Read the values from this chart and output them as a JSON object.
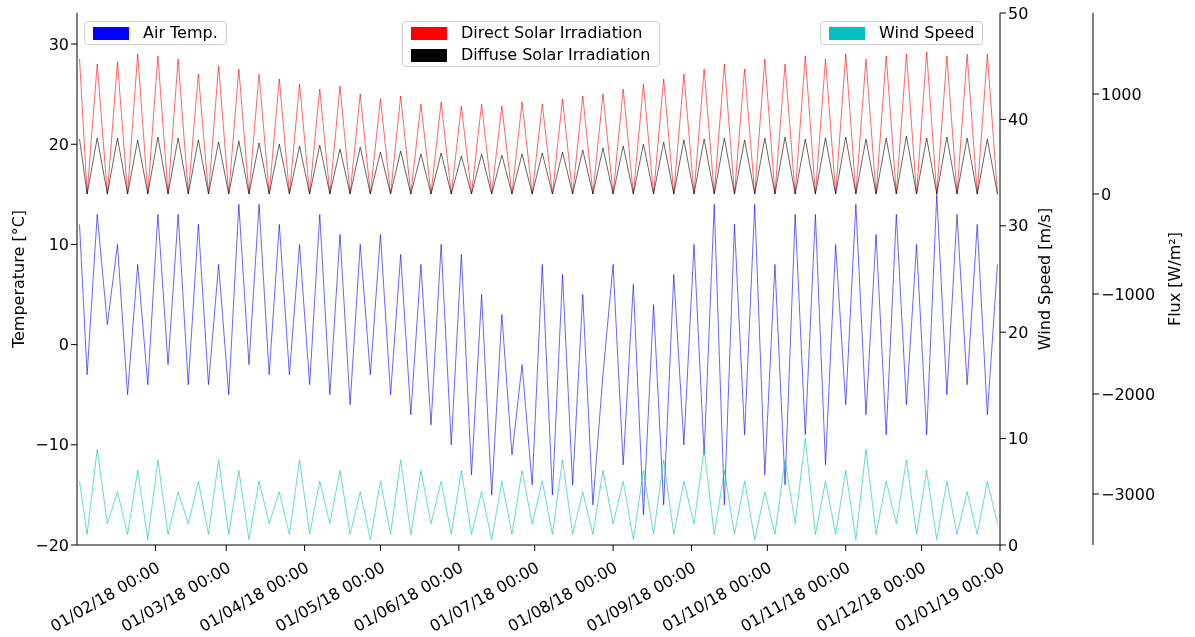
{
  "chart_data": {
    "type": "line",
    "x": [
      "2018-01-02",
      "2018-01-05",
      "2018-01-09",
      "2018-01-13",
      "2018-01-17",
      "2018-01-21",
      "2018-01-25",
      "2018-01-29",
      "2018-02-02",
      "2018-02-06",
      "2018-02-10",
      "2018-02-14",
      "2018-02-18",
      "2018-02-22",
      "2018-02-26",
      "2018-03-02",
      "2018-03-06",
      "2018-03-10",
      "2018-03-14",
      "2018-03-18",
      "2018-03-22",
      "2018-03-26",
      "2018-03-30",
      "2018-04-03",
      "2018-04-07",
      "2018-04-11",
      "2018-04-15",
      "2018-04-19",
      "2018-04-23",
      "2018-04-27",
      "2018-05-01",
      "2018-05-05",
      "2018-05-09",
      "2018-05-13",
      "2018-05-17",
      "2018-05-21",
      "2018-05-25",
      "2018-05-29",
      "2018-06-02",
      "2018-06-06",
      "2018-06-10",
      "2018-06-14",
      "2018-06-18",
      "2018-06-22",
      "2018-06-26",
      "2018-06-30",
      "2018-07-04",
      "2018-07-08",
      "2018-07-12",
      "2018-07-16",
      "2018-07-20",
      "2018-07-24",
      "2018-07-28",
      "2018-08-01",
      "2018-08-05",
      "2018-08-09",
      "2018-08-13",
      "2018-08-17",
      "2018-08-21",
      "2018-08-25",
      "2018-08-29",
      "2018-09-02",
      "2018-09-06",
      "2018-09-10",
      "2018-09-14",
      "2018-09-18",
      "2018-09-22",
      "2018-09-26",
      "2018-09-30",
      "2018-10-04",
      "2018-10-08",
      "2018-10-12",
      "2018-10-16",
      "2018-10-20",
      "2018-10-24",
      "2018-10-28",
      "2018-11-01",
      "2018-11-05",
      "2018-11-09",
      "2018-11-13",
      "2018-11-17",
      "2018-11-21",
      "2018-11-25",
      "2018-11-29",
      "2018-12-03",
      "2018-12-07",
      "2018-12-11",
      "2018-12-15",
      "2018-12-19",
      "2018-12-23",
      "2018-12-27",
      "2018-12-31"
    ],
    "series": [
      {
        "name": "Air Temp.",
        "color": "#0000ff",
        "values": [
          12,
          -3,
          13,
          2,
          10,
          -5,
          8,
          -4,
          13,
          -2,
          13,
          -4,
          12,
          -4,
          8,
          -5,
          14,
          -2,
          14,
          -3,
          12,
          -3,
          10,
          -4,
          13,
          -5,
          11,
          -6,
          10,
          -3,
          11,
          -5,
          9,
          -7,
          8,
          -8,
          10,
          -10,
          9,
          -13,
          5,
          -15,
          3,
          -11,
          -2,
          -14,
          8,
          -15,
          7,
          -14,
          5,
          -16,
          -3,
          8,
          -12,
          6,
          -17,
          4,
          -16,
          7,
          -10,
          10,
          -11,
          14,
          -16,
          12,
          -9,
          14,
          -13,
          8,
          -14,
          13,
          -9,
          13,
          -12,
          10,
          -6,
          14,
          -7,
          11,
          -9,
          13,
          -6,
          10,
          -9,
          15,
          -5,
          13,
          -4,
          12,
          -7,
          8
        ]
      },
      {
        "name": "Direct Solar Irradiation",
        "color": "#ff0000",
        "axis": "y3",
        "values": [
          1350,
          0,
          1300,
          0,
          1320,
          0,
          1400,
          0,
          1380,
          0,
          1350,
          0,
          1200,
          0,
          1280,
          0,
          1250,
          0,
          1200,
          0,
          1150,
          0,
          1100,
          0,
          1050,
          0,
          1080,
          0,
          1000,
          0,
          950,
          0,
          980,
          0,
          900,
          0,
          920,
          0,
          880,
          0,
          900,
          0,
          880,
          0,
          920,
          0,
          900,
          0,
          950,
          0,
          980,
          0,
          1000,
          0,
          1050,
          0,
          1100,
          0,
          1150,
          0,
          1200,
          0,
          1250,
          0,
          1300,
          0,
          1250,
          0,
          1350,
          0,
          1300,
          0,
          1380,
          0,
          1350,
          0,
          1400,
          0,
          1350,
          0,
          1380,
          0,
          1400,
          0,
          1420,
          0,
          1380,
          0,
          1400,
          0,
          1400,
          0
        ]
      },
      {
        "name": "Diffuse Solar Irradiation",
        "color": "#000000",
        "axis": "y3",
        "values": [
          550,
          0,
          560,
          0,
          560,
          0,
          540,
          0,
          570,
          0,
          560,
          0,
          540,
          0,
          520,
          0,
          530,
          0,
          510,
          0,
          500,
          0,
          480,
          0,
          490,
          0,
          450,
          0,
          470,
          0,
          420,
          0,
          430,
          0,
          400,
          0,
          410,
          0,
          380,
          0,
          400,
          0,
          390,
          0,
          400,
          0,
          410,
          0,
          420,
          0,
          440,
          0,
          460,
          0,
          480,
          0,
          500,
          0,
          520,
          0,
          540,
          0,
          550,
          0,
          560,
          0,
          540,
          0,
          560,
          0,
          570,
          0,
          550,
          0,
          560,
          0,
          570,
          0,
          550,
          0,
          560,
          0,
          580,
          0,
          560,
          0,
          570,
          0,
          560,
          0,
          550,
          0
        ]
      },
      {
        "name": "Wind Speed",
        "color": "#00bfbf",
        "axis": "y2",
        "values": [
          6,
          1,
          9,
          2,
          5,
          1,
          7,
          0.5,
          8,
          1,
          5,
          2,
          6,
          1,
          8,
          1,
          7,
          0.5,
          6,
          2,
          5,
          1,
          8,
          1,
          6,
          2,
          7,
          1,
          5,
          0.5,
          6,
          1,
          8,
          1,
          7,
          2,
          6,
          1,
          7,
          1,
          5,
          0.5,
          6,
          1,
          7,
          2,
          6,
          1,
          8,
          1,
          5,
          1,
          7,
          2,
          6,
          0.5,
          7,
          1,
          8,
          1,
          6,
          2,
          9,
          1,
          7,
          1,
          6,
          0.5,
          5,
          1,
          8,
          2,
          10,
          1,
          6,
          1,
          7,
          0.5,
          9,
          1,
          6,
          2,
          8,
          1,
          7,
          0.5,
          6,
          1,
          5,
          1,
          6,
          2
        ]
      }
    ],
    "ylabel": "Temperature [°C]",
    "y2label": "Wind Speed [m/s]",
    "y3label": "Flux [W/m²]",
    "xlim": [
      "2018-01-01",
      "2019-01-01"
    ],
    "xticks": [
      {
        "value": "2018-02-01",
        "label": "01/02/18 00:00"
      },
      {
        "value": "2018-03-01",
        "label": "01/03/18 00:00"
      },
      {
        "value": "2018-04-01",
        "label": "01/04/18 00:00"
      },
      {
        "value": "2018-05-01",
        "label": "01/05/18 00:00"
      },
      {
        "value": "2018-06-01",
        "label": "01/06/18 00:00"
      },
      {
        "value": "2018-07-01",
        "label": "01/07/18 00:00"
      },
      {
        "value": "2018-08-01",
        "label": "01/08/18 00:00"
      },
      {
        "value": "2018-09-01",
        "label": "01/09/18 00:00"
      },
      {
        "value": "2018-10-01",
        "label": "01/10/18 00:00"
      },
      {
        "value": "2018-11-01",
        "label": "01/11/18 00:00"
      },
      {
        "value": "2018-12-01",
        "label": "01/12/18 00:00"
      },
      {
        "value": "2019-01-01",
        "label": "01/01/19 00:00"
      }
    ],
    "ylim": [
      -20,
      33.1
    ],
    "yticks": [
      -20,
      -10,
      0,
      10,
      20,
      30
    ],
    "y2lim": [
      0,
      50
    ],
    "y2ticks": [
      0,
      10,
      20,
      30,
      40,
      50
    ],
    "y3lim": [
      -3510,
      1810
    ],
    "y3ticks": [
      -3000,
      -2000,
      -1000,
      0,
      1000
    ],
    "grid": false,
    "legend": "top",
    "marker": "none",
    "line_style": "solid"
  }
}
